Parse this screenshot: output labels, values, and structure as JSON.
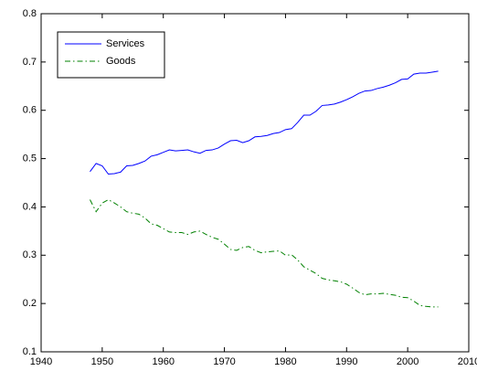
{
  "chart_data": {
    "type": "line",
    "x": [
      1948,
      1949,
      1950,
      1951,
      1952,
      1953,
      1954,
      1955,
      1956,
      1957,
      1958,
      1959,
      1960,
      1961,
      1962,
      1963,
      1964,
      1965,
      1966,
      1967,
      1968,
      1969,
      1970,
      1971,
      1972,
      1973,
      1974,
      1975,
      1976,
      1977,
      1978,
      1979,
      1980,
      1981,
      1982,
      1983,
      1984,
      1985,
      1986,
      1987,
      1988,
      1989,
      1990,
      1991,
      1992,
      1993,
      1994,
      1995,
      1996,
      1997,
      1998,
      1999,
      2000,
      2001,
      2002,
      2003,
      2004,
      2005
    ],
    "series": [
      {
        "name": "Services",
        "color": "#0000ff",
        "line_style": "solid",
        "values": [
          0.473,
          0.49,
          0.485,
          0.468,
          0.469,
          0.472,
          0.485,
          0.486,
          0.49,
          0.495,
          0.505,
          0.508,
          0.513,
          0.518,
          0.516,
          0.517,
          0.518,
          0.514,
          0.511,
          0.517,
          0.518,
          0.522,
          0.53,
          0.537,
          0.538,
          0.533,
          0.537,
          0.545,
          0.546,
          0.548,
          0.552,
          0.554,
          0.56,
          0.562,
          0.575,
          0.59,
          0.59,
          0.598,
          0.61,
          0.611,
          0.613,
          0.617,
          0.622,
          0.628,
          0.635,
          0.64,
          0.641,
          0.645,
          0.648,
          0.652,
          0.657,
          0.664,
          0.665,
          0.675,
          0.677,
          0.677,
          0.679,
          0.681
        ]
      },
      {
        "name": "Goods",
        "color": "#008000",
        "line_style": "dashdot",
        "values": [
          0.415,
          0.39,
          0.408,
          0.415,
          0.408,
          0.4,
          0.39,
          0.387,
          0.385,
          0.377,
          0.365,
          0.362,
          0.355,
          0.348,
          0.347,
          0.347,
          0.343,
          0.348,
          0.35,
          0.343,
          0.337,
          0.333,
          0.323,
          0.312,
          0.31,
          0.316,
          0.318,
          0.31,
          0.305,
          0.307,
          0.308,
          0.309,
          0.3,
          0.301,
          0.29,
          0.276,
          0.269,
          0.262,
          0.252,
          0.249,
          0.247,
          0.245,
          0.24,
          0.232,
          0.223,
          0.218,
          0.22,
          0.22,
          0.221,
          0.219,
          0.217,
          0.213,
          0.212,
          0.205,
          0.196,
          0.194,
          0.193,
          0.193
        ]
      }
    ],
    "xlim": [
      1940,
      2010
    ],
    "xticks": [
      1940,
      1950,
      1960,
      1970,
      1980,
      1990,
      2000,
      2010
    ],
    "ylim": [
      0.1,
      0.8
    ],
    "yticks": [
      0.1,
      0.2,
      0.3,
      0.4,
      0.5,
      0.6,
      0.7,
      0.8
    ],
    "grid": false,
    "legend": "upper-left"
  }
}
